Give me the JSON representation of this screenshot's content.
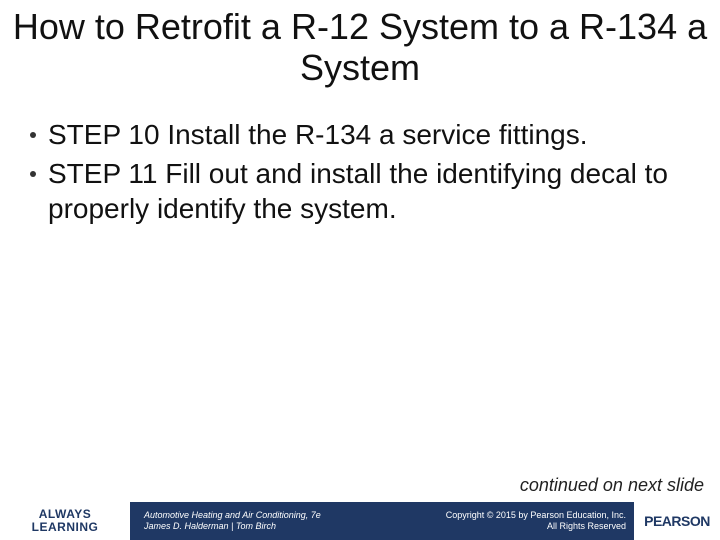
{
  "title": "How to Retrofit a R-12 System to a R-134 a System",
  "bullets": [
    "STEP 10 Install the R-134 a service fittings.",
    "STEP 11 Fill out and install the identifying decal to properly identify the system."
  ],
  "continued": "continued on next slide",
  "footer": {
    "always_learning_line1": "ALWAYS",
    "always_learning_line2": "LEARNING",
    "book_line1": "Automotive Heating and Air Conditioning, 7e",
    "book_line2": "James D. Halderman | Tom Birch",
    "copyright_line1": "Copyright © 2015 by Pearson Education, Inc.",
    "copyright_line2": "All Rights Reserved",
    "pearson": "PEARSON"
  },
  "colors": {
    "brand_blue": "#1f3864",
    "text": "#111111",
    "white": "#ffffff"
  }
}
